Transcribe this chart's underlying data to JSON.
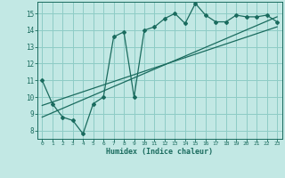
{
  "xlabel": "Humidex (Indice chaleur)",
  "ylabel": "",
  "bg_color": "#c2e8e4",
  "grid_color": "#8eccc6",
  "line_color": "#1a6b5e",
  "xlim": [
    -0.5,
    23.5
  ],
  "ylim": [
    7.5,
    15.7
  ],
  "xticks": [
    0,
    1,
    2,
    3,
    4,
    5,
    6,
    7,
    8,
    9,
    10,
    11,
    12,
    13,
    14,
    15,
    16,
    17,
    18,
    19,
    20,
    21,
    22,
    23
  ],
  "yticks": [
    8,
    9,
    10,
    11,
    12,
    13,
    14,
    15
  ],
  "data_x": [
    0,
    1,
    2,
    3,
    4,
    5,
    6,
    7,
    8,
    9,
    10,
    11,
    12,
    13,
    14,
    15,
    16,
    17,
    18,
    19,
    20,
    21,
    22,
    23
  ],
  "data_y": [
    11.0,
    9.6,
    8.8,
    8.6,
    7.8,
    9.6,
    10.0,
    13.6,
    13.9,
    10.0,
    14.0,
    14.2,
    14.7,
    15.0,
    14.4,
    15.6,
    14.9,
    14.5,
    14.5,
    14.9,
    14.8,
    14.8,
    14.9,
    14.5
  ],
  "trend1_x": [
    0,
    23
  ],
  "trend1_y": [
    9.5,
    14.2
  ],
  "trend2_x": [
    0,
    23
  ],
  "trend2_y": [
    8.8,
    14.8
  ]
}
